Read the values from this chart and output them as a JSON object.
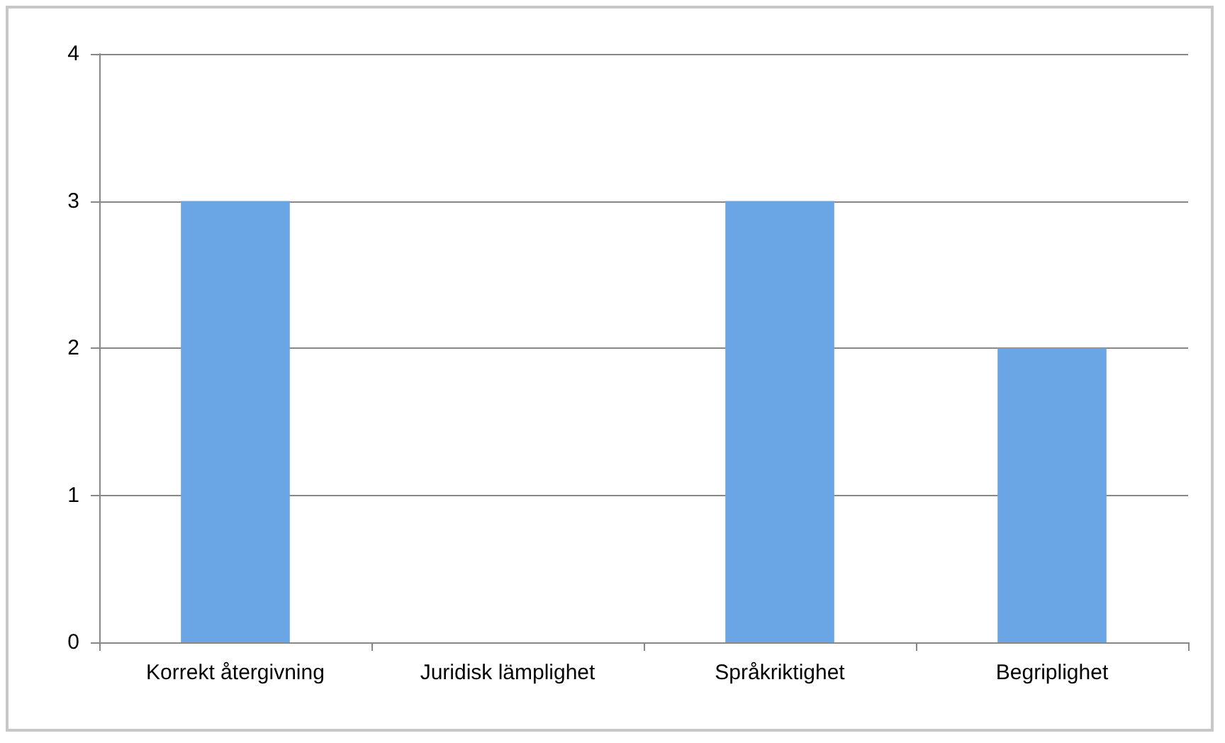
{
  "chart_data": {
    "type": "bar",
    "categories": [
      "Korrekt återgivning",
      "Juridisk lämplighet",
      "Språkriktighet",
      "Begriplighet"
    ],
    "values": [
      3,
      0,
      3,
      2
    ],
    "color": "#6aa6e6",
    "ylim": [
      0,
      4
    ],
    "yticks": [
      0,
      1,
      2,
      3,
      4
    ],
    "grid": "y"
  }
}
